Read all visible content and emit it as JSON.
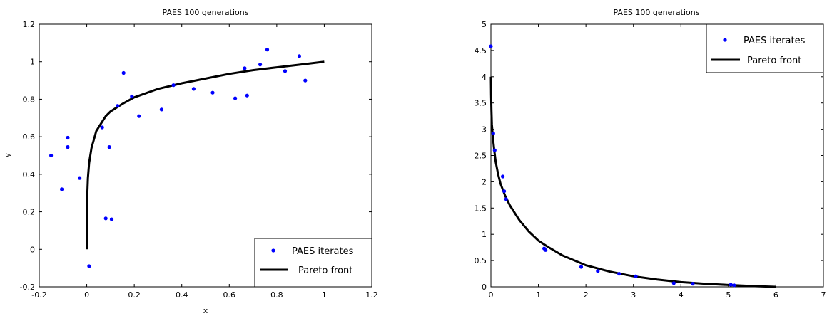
{
  "chart_data": [
    {
      "type": "scatter",
      "title": "PAES 100 generations",
      "xlabel": "x",
      "ylabel": "y",
      "xlim": [
        -0.2,
        1.2
      ],
      "ylim": [
        -0.2,
        1.2
      ],
      "xticks": [
        "-0.2",
        "0",
        "0.2",
        "0.4",
        "0.6",
        "0.8",
        "1",
        "1.2"
      ],
      "yticks": [
        "-0.2",
        "0",
        "0.2",
        "0.4",
        "0.6",
        "0.8",
        "1",
        "1.2"
      ],
      "legend_position": "bottom-right",
      "grid": false,
      "series": [
        {
          "name": "PAES iterates",
          "kind": "points",
          "color": "#0000ff",
          "x": [
            -0.15,
            -0.105,
            -0.08,
            -0.08,
            -0.03,
            0.01,
            0.065,
            0.08,
            0.095,
            0.105,
            0.13,
            0.155,
            0.19,
            0.22,
            0.315,
            0.365,
            0.45,
            0.53,
            0.625,
            0.665,
            0.675,
            0.73,
            0.76,
            0.835,
            0.895,
            0.92
          ],
          "y": [
            0.5,
            0.32,
            0.595,
            0.545,
            0.38,
            -0.09,
            0.65,
            0.165,
            0.545,
            0.16,
            0.765,
            0.94,
            0.815,
            0.71,
            0.745,
            0.875,
            0.855,
            0.835,
            0.805,
            0.965,
            0.82,
            0.985,
            1.065,
            0.95,
            1.03,
            0.9
          ]
        },
        {
          "name": "Pareto front",
          "kind": "line",
          "color": "#000000",
          "x": [
            0,
            0.0005,
            0.001,
            0.002,
            0.005,
            0.01,
            0.02,
            0.04,
            0.06,
            0.08,
            0.1,
            0.15,
            0.2,
            0.3,
            0.4,
            0.5,
            0.6,
            0.7,
            0.8,
            0.9,
            1.0
          ],
          "y": [
            0.0,
            0.15,
            0.22,
            0.28,
            0.38,
            0.46,
            0.54,
            0.63,
            0.67,
            0.71,
            0.735,
            0.775,
            0.81,
            0.855,
            0.885,
            0.91,
            0.935,
            0.955,
            0.97,
            0.985,
            1.0
          ]
        }
      ]
    },
    {
      "type": "scatter",
      "title": "PAES 100 generations",
      "xlabel": "",
      "ylabel": "",
      "xlim": [
        0,
        7
      ],
      "ylim": [
        0,
        5
      ],
      "xticks": [
        "0",
        "1",
        "2",
        "3",
        "4",
        "5",
        "6",
        "7"
      ],
      "yticks": [
        "0",
        "0.5",
        "1",
        "1.5",
        "2",
        "2.5",
        "3",
        "3.5",
        "4",
        "4.5",
        "5"
      ],
      "legend_position": "top-right",
      "grid": false,
      "series": [
        {
          "name": "PAES iterates",
          "kind": "points",
          "color": "#0000ff",
          "x": [
            0.0,
            0.05,
            0.08,
            0.25,
            0.28,
            0.32,
            1.12,
            1.15,
            1.9,
            2.25,
            2.7,
            3.05,
            3.85,
            4.25,
            5.05,
            5.12
          ],
          "y": [
            4.58,
            2.92,
            2.6,
            2.1,
            1.82,
            1.67,
            0.73,
            0.7,
            0.38,
            0.3,
            0.25,
            0.2,
            0.07,
            0.06,
            0.04,
            0.03
          ]
        },
        {
          "name": "Pareto front",
          "kind": "line",
          "color": "#000000",
          "x": [
            0,
            0.005,
            0.01,
            0.02,
            0.04,
            0.07,
            0.1,
            0.15,
            0.2,
            0.3,
            0.4,
            0.6,
            0.8,
            1.0,
            1.2,
            1.5,
            2.0,
            2.5,
            3.0,
            3.5,
            4.0,
            4.5,
            5.0,
            5.5,
            6.0
          ],
          "y": [
            4.0,
            3.65,
            3.38,
            3.1,
            2.85,
            2.6,
            2.38,
            2.15,
            1.97,
            1.73,
            1.55,
            1.27,
            1.05,
            0.88,
            0.76,
            0.6,
            0.41,
            0.29,
            0.2,
            0.14,
            0.09,
            0.06,
            0.035,
            0.015,
            0.0
          ]
        }
      ]
    }
  ]
}
